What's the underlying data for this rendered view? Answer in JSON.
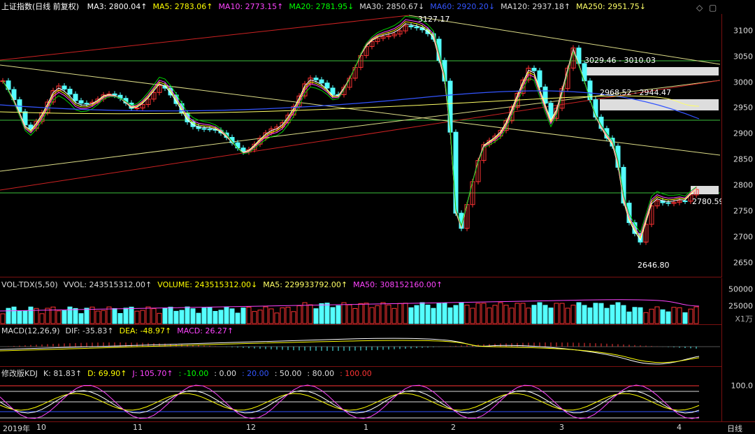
{
  "header": {
    "title": "上证指数(日线 前复权)",
    "ma": [
      {
        "label": "MA3: 2800.04",
        "arrow": "↑",
        "color": "#ffffff"
      },
      {
        "label": "MA5: 2783.06",
        "arrow": "↑",
        "color": "#ffff00"
      },
      {
        "label": "MA10: 2773.15",
        "arrow": "↑",
        "color": "#ff44ff"
      },
      {
        "label": "MA20: 2781.95",
        "arrow": "↓",
        "color": "#00ff00"
      },
      {
        "label": "MA30: 2850.67",
        "arrow": "↓",
        "color": "#dddddd"
      },
      {
        "label": "MA60: 2920.20",
        "arrow": "↓",
        "color": "#3355ff"
      },
      {
        "label": "MA120: 2937.18",
        "arrow": "↑",
        "color": "#dddddd"
      },
      {
        "label": "MA250: 2951.75",
        "arrow": "↓",
        "color": "#ffff66"
      }
    ],
    "controls": [
      "◇",
      "▢"
    ]
  },
  "main": {
    "price_ticks": [
      "3100",
      "3050",
      "3000",
      "2950",
      "2900",
      "2850",
      "2800",
      "2750",
      "2700",
      "2650"
    ],
    "annotations": [
      "3127.17",
      "3029.46 - 3010.03",
      "2968.52 - 2944.47",
      "2780.59",
      "2646.80"
    ]
  },
  "volume": {
    "labels": [
      {
        "text": "VOL-TDX(5,50)",
        "color": "#dddddd"
      },
      {
        "text": "VVOL: 243515312.00↑",
        "color": "#dddddd"
      },
      {
        "text": "VOLUME: 243515312.00↓",
        "color": "#ffff00"
      },
      {
        "text": "MA5: 229933792.00↑",
        "color": "#ffff66"
      },
      {
        "text": "MA50: 308152160.00↑",
        "color": "#ff44ff"
      }
    ],
    "ticks": [
      "50000",
      "25000"
    ],
    "unit": "X1万"
  },
  "macd": {
    "labels": [
      {
        "text": "MACD(12,26,9)",
        "color": "#dddddd"
      },
      {
        "text": "DIF: -35.83↑",
        "color": "#dddddd"
      },
      {
        "text": "DEA: -48.97↑",
        "color": "#ffff00"
      },
      {
        "text": "MACD: 26.27↑",
        "color": "#ff44ff"
      }
    ]
  },
  "kdj": {
    "labels": [
      {
        "text": "修改版KDJ",
        "color": "#dddddd"
      },
      {
        "text": "K: 81.83↑",
        "color": "#dddddd"
      },
      {
        "text": "D: 69.90↑",
        "color": "#ffff00"
      },
      {
        "text": "J: 105.70↑",
        "color": "#ff44ff"
      },
      {
        "text": ": -10.00",
        "color": "#00ff00"
      },
      {
        "text": ": 0.00",
        "color": "#dddddd"
      },
      {
        "text": ": 20.00",
        "color": "#3355ff"
      },
      {
        "text": ": 50.00",
        "color": "#dddddd"
      },
      {
        "text": ": 80.00",
        "color": "#dddddd"
      },
      {
        "text": ": 100.00",
        "color": "#ff3333"
      }
    ],
    "ticks": [
      "100.0"
    ]
  },
  "dates": [
    "2019年",
    "10",
    "11",
    "12",
    "1",
    "2",
    "3",
    "4"
  ],
  "period_button": "日线"
}
